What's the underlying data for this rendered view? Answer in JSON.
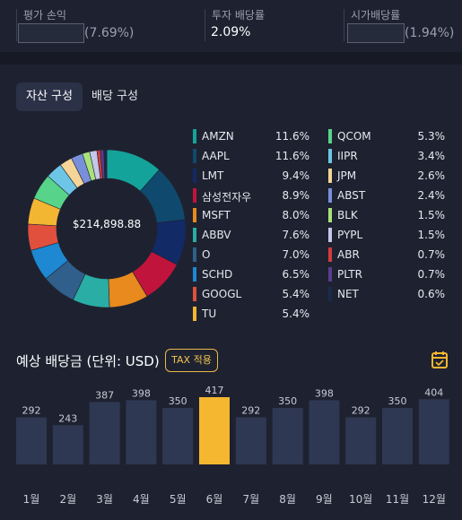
{
  "summary": {
    "profit": {
      "label": "평가 손익",
      "pct": "(7.69%)"
    },
    "investment_yield": {
      "label": "투자 배당률",
      "value": "2.09%"
    },
    "market_yield": {
      "label": "시가배당률",
      "pct": "(1.94%)"
    }
  },
  "tabs": [
    {
      "label": "자산 구성",
      "active": true
    },
    {
      "label": "배당 구성",
      "active": false
    }
  ],
  "portfolio": {
    "total": "$214,898.88",
    "holdings": [
      {
        "name": "AMZN",
        "pct": "11.6%",
        "value": 11.6,
        "color": "#14a39a"
      },
      {
        "name": "AAPL",
        "pct": "11.6%",
        "value": 11.6,
        "color": "#0f4a6e"
      },
      {
        "name": "LMT",
        "pct": "9.4%",
        "value": 9.4,
        "color": "#122a66"
      },
      {
        "name": "삼성전자우",
        "pct": "8.9%",
        "value": 8.9,
        "color": "#c0143c"
      },
      {
        "name": "MSFT",
        "pct": "8.0%",
        "value": 8.0,
        "color": "#e88a1e"
      },
      {
        "name": "ABBV",
        "pct": "7.6%",
        "value": 7.6,
        "color": "#2aada5"
      },
      {
        "name": "O",
        "pct": "7.0%",
        "value": 7.0,
        "color": "#2f5f8a"
      },
      {
        "name": "SCHD",
        "pct": "6.5%",
        "value": 6.5,
        "color": "#1e88d2"
      },
      {
        "name": "GOOGL",
        "pct": "5.4%",
        "value": 5.4,
        "color": "#e0503c"
      },
      {
        "name": "TU",
        "pct": "5.4%",
        "value": 5.4,
        "color": "#f2b632"
      },
      {
        "name": "QCOM",
        "pct": "5.3%",
        "value": 5.3,
        "color": "#58d48a"
      },
      {
        "name": "IIPR",
        "pct": "3.4%",
        "value": 3.4,
        "color": "#6ec6e6"
      },
      {
        "name": "JPM",
        "pct": "2.6%",
        "value": 2.6,
        "color": "#f5d597"
      },
      {
        "name": "ABST",
        "pct": "2.4%",
        "value": 2.4,
        "color": "#7890dc"
      },
      {
        "name": "BLK",
        "pct": "1.5%",
        "value": 1.5,
        "color": "#a9e27a"
      },
      {
        "name": "PYPL",
        "pct": "1.5%",
        "value": 1.5,
        "color": "#c4c7ea"
      },
      {
        "name": "ABR",
        "pct": "0.7%",
        "value": 0.7,
        "color": "#d23c3c"
      },
      {
        "name": "PLTR",
        "pct": "0.7%",
        "value": 0.7,
        "color": "#5a3c8c"
      },
      {
        "name": "NET",
        "pct": "0.6%",
        "value": 0.6,
        "color": "#1c2a4a"
      }
    ]
  },
  "dividend": {
    "title": "예상 배당금 (단위: USD)",
    "tax_button": "TAX 적용",
    "calendar_icon": "calendar-check-icon",
    "bar_color": "#2f3852",
    "highlight_color": "#f5b730"
  },
  "chart_data": {
    "type": "bar",
    "categories": [
      "1월",
      "2월",
      "3월",
      "4월",
      "5월",
      "6월",
      "7월",
      "8월",
      "9월",
      "10월",
      "11월",
      "12월"
    ],
    "values": [
      292,
      243,
      387,
      398,
      350,
      417,
      292,
      350,
      398,
      292,
      350,
      404
    ],
    "highlight_index": 5,
    "title": "예상 배당금 (단위: USD)"
  }
}
